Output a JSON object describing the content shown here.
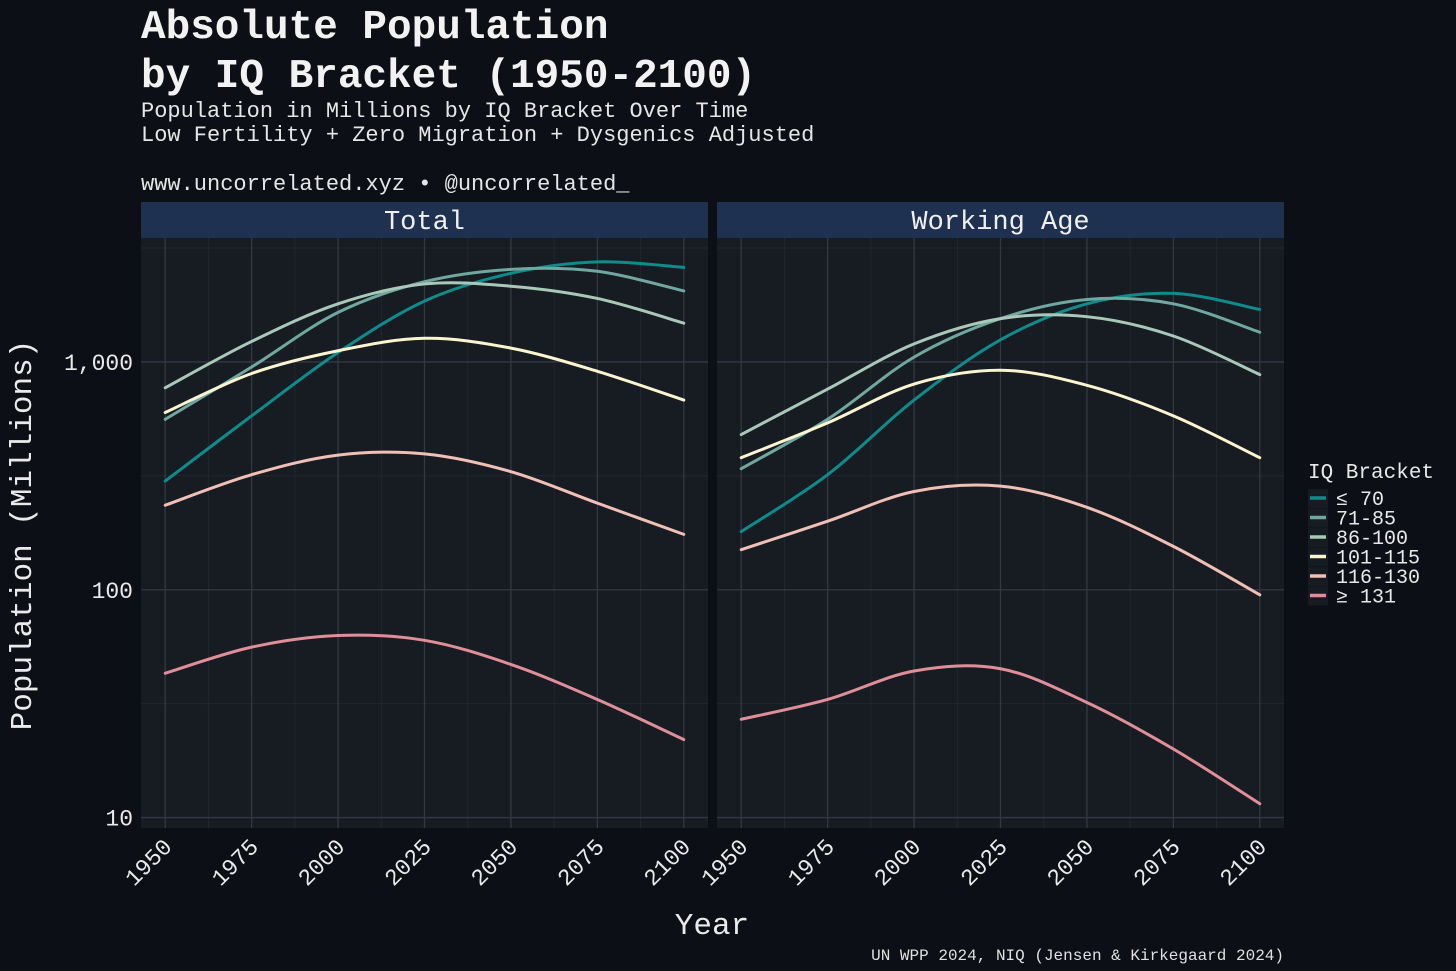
{
  "chart_data": {
    "type": "line",
    "title_lines": [
      "Absolute Population",
      "by IQ Bracket (1950-2100)"
    ],
    "subtitle_lines": [
      "Population in Millions by IQ Bracket Over Time",
      "Low Fertility + Zero Migration + Dysgenics Adjusted",
      "",
      "www.uncorrelated.xyz • @uncorrelated_"
    ],
    "xlabel": "Year",
    "ylabel": "Population (Millions)",
    "caption": "UN WPP 2024, NIQ (Jensen & Kirkegaard 2024)",
    "y_scale": "log10",
    "ylim": [
      9,
      3500
    ],
    "xlim": [
      1943,
      2107
    ],
    "x_ticks": [
      1950,
      1975,
      2000,
      2025,
      2050,
      2075,
      2100
    ],
    "x_tick_labels": [
      "1950",
      "1975",
      "2000",
      "2025",
      "2050",
      "2075",
      "2100"
    ],
    "y_ticks": [
      10,
      100,
      1000
    ],
    "y_tick_labels": [
      "10",
      "100",
      "1,000"
    ],
    "grid": true,
    "legend": {
      "title": "IQ Bracket",
      "position": "right",
      "entries": [
        {
          "label": "≤ 70",
          "color": "#0e8c8c"
        },
        {
          "label": "71-85",
          "color": "#6fa8a0"
        },
        {
          "label": "86-100",
          "color": "#a9c9b8"
        },
        {
          "label": "101-115",
          "color": "#fbf5cf"
        },
        {
          "label": "116-130",
          "color": "#f1c0b5"
        },
        {
          "label": "≥ 131",
          "color": "#e08e98"
        }
      ]
    },
    "x": [
      1950,
      1975,
      2000,
      2025,
      2050,
      2075,
      2100
    ],
    "panels": [
      {
        "name": "Total",
        "series": [
          {
            "name": "≤ 70",
            "values": [
              300,
              580,
              1100,
              1850,
              2450,
              2750,
              2600
            ]
          },
          {
            "name": "71-85",
            "values": [
              560,
              950,
              1650,
              2250,
              2550,
              2500,
              2050
            ]
          },
          {
            "name": "86-100",
            "values": [
              770,
              1230,
              1800,
              2200,
              2150,
              1900,
              1480
            ]
          },
          {
            "name": "101-115",
            "values": [
              600,
              890,
              1120,
              1270,
              1150,
              910,
              680
            ]
          },
          {
            "name": "116-130",
            "values": [
              235,
              320,
              390,
              395,
              330,
              240,
              175
            ]
          },
          {
            "name": "≥ 131",
            "values": [
              43,
              56,
              63,
              60,
              47,
              33,
              22
            ]
          }
        ]
      },
      {
        "name": "Working Age",
        "series": [
          {
            "name": "≤ 70",
            "values": [
              180,
              320,
              680,
              1250,
              1800,
              2000,
              1700
            ]
          },
          {
            "name": "71-85",
            "values": [
              340,
              560,
              1050,
              1550,
              1880,
              1800,
              1350
            ]
          },
          {
            "name": "86-100",
            "values": [
              480,
              760,
              1200,
              1550,
              1580,
              1300,
              880
            ]
          },
          {
            "name": "101-115",
            "values": [
              380,
              540,
              800,
              920,
              790,
              580,
              380
            ]
          },
          {
            "name": "116-130",
            "values": [
              150,
              200,
              270,
              285,
              230,
              155,
              95
            ]
          },
          {
            "name": "≥ 131",
            "values": [
              27,
              33,
              44,
              45,
              32,
              20,
              11.5
            ]
          }
        ]
      }
    ]
  }
}
